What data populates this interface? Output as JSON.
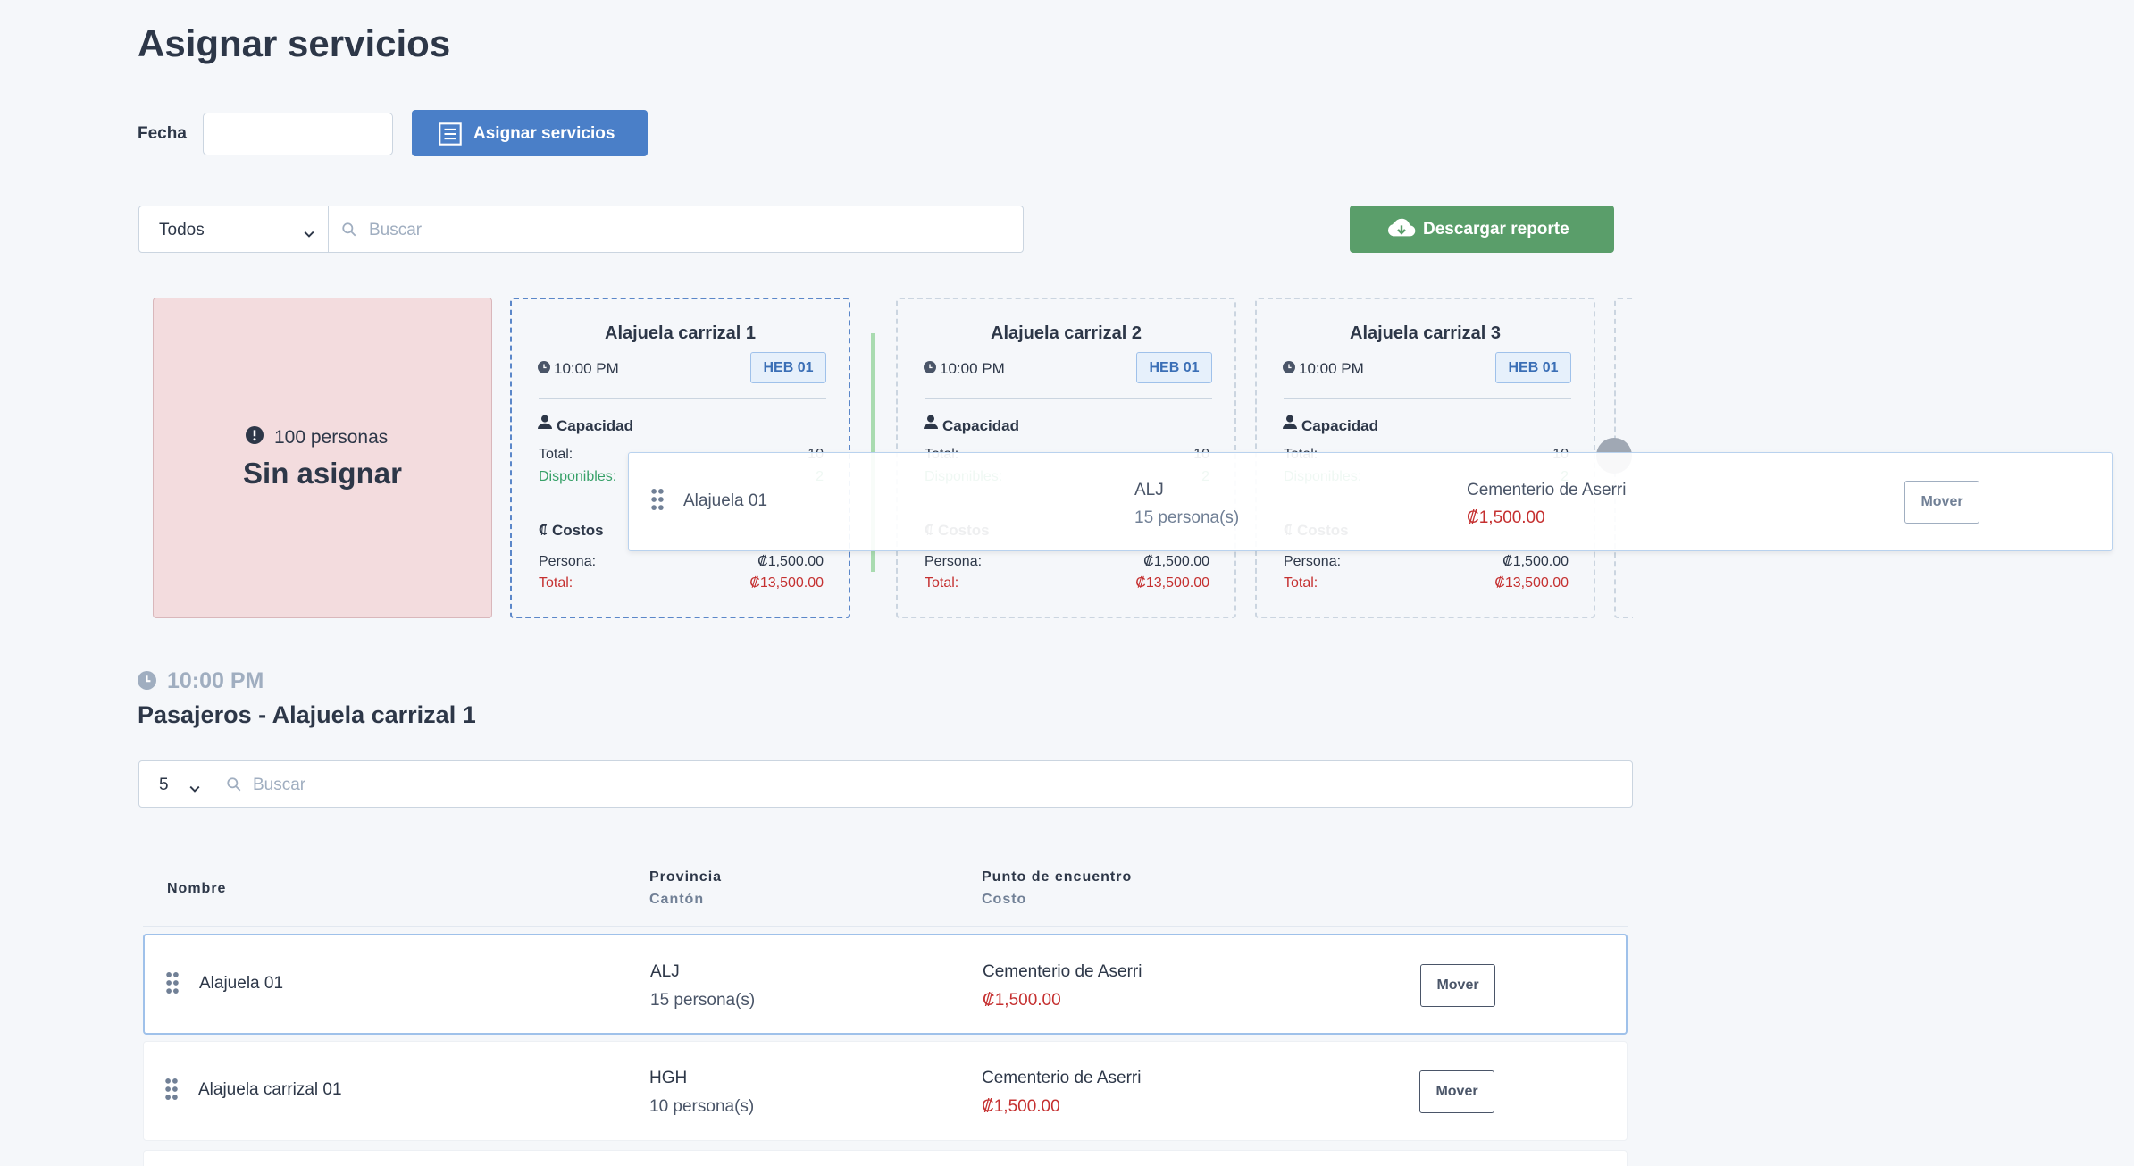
{
  "header": {
    "title": "Asignar servicios"
  },
  "filters": {
    "date_label": "Fecha",
    "assign_button": "Asignar servicios",
    "select": "Todos",
    "search_placeholder": "Buscar",
    "download_button": "Descargar reporte"
  },
  "unassigned": {
    "count": "100 personas",
    "label": "Sin asignar"
  },
  "routes": [
    {
      "name": "Alajuela carrizal 1",
      "time": "10:00 PM",
      "badge": "HEB 01",
      "capacity": "Capacidad",
      "total_label": "Total:",
      "total": "10",
      "available_label": "Disponibles:",
      "available": "2",
      "costs": "Costos",
      "person_label": "Persona:",
      "person_cost": "₡1,500.00",
      "cost_total_label": "Total:",
      "cost_total": "₡13,500.00"
    },
    {
      "name": "Alajuela carrizal 2",
      "time": "10:00 PM",
      "badge": "HEB 01",
      "capacity": "Capacidad",
      "total_label": "Total:",
      "total": "10",
      "available_label": "Disponibles:",
      "available": "2",
      "costs": "Costos",
      "person_label": "Persona:",
      "person_cost": "₡1,500.00",
      "cost_total_label": "Total:",
      "cost_total": "₡13,500.00"
    },
    {
      "name": "Alajuela carrizal 3",
      "time": "10:00 PM",
      "badge": "HEB 01",
      "capacity": "Capacidad",
      "total_label": "Total:",
      "total": "10",
      "available_label": "Disponibles:",
      "available": "2",
      "costs": "Costos",
      "person_label": "Persona:",
      "person_cost": "₡1,500.00",
      "cost_total_label": "Total:",
      "cost_total": "₡13,500.00"
    }
  ],
  "drag_preview": {
    "name": "Alajuela 01",
    "code": "ALJ",
    "people": "15 persona(s)",
    "meeting": "Cementerio de Aserri",
    "cost": "₡1,500.00",
    "button": "Mover"
  },
  "section": {
    "time": "10:00 PM",
    "title": "Pasajeros - Alajuela carrizal 1"
  },
  "table": {
    "page_size": "5",
    "search_placeholder": "Buscar",
    "headers": {
      "name": "Nombre",
      "province": "Provincia",
      "canton": "Cantón",
      "meeting": "Punto de encuentro",
      "cost": "Costo"
    },
    "rows": [
      {
        "name": "Alajuela 01",
        "code": "ALJ",
        "people": "15 persona(s)",
        "meeting": "Cementerio de Aserri",
        "cost": "₡1,500.00",
        "button": "Mover"
      },
      {
        "name": "Alajuela carrizal 01",
        "code": "HGH",
        "people": "10 persona(s)",
        "meeting": "Cementerio de Aserri",
        "cost": "₡1,500.00",
        "button": "Mover"
      }
    ]
  }
}
